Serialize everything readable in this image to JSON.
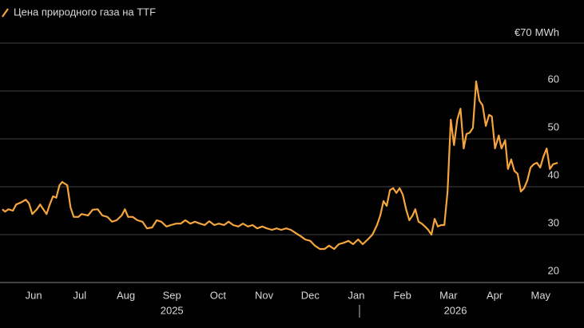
{
  "chart_data": {
    "type": "line",
    "legend_position": "top-left",
    "ylabel": "MWh",
    "x": [
      -0.18,
      -0.12,
      -0.05,
      0.05,
      0.12,
      0.22,
      0.33,
      0.4,
      0.47,
      0.57,
      0.64,
      0.71,
      0.78,
      0.85,
      0.92,
      0.99,
      1.06,
      1.12,
      1.23,
      1.3,
      1.37,
      1.47,
      1.54,
      1.68,
      1.78,
      1.89,
      1.99,
      2.1,
      2.2,
      2.3,
      2.41,
      2.48,
      2.55,
      2.65,
      2.75,
      2.86,
      2.96,
      3.07,
      3.17,
      3.27,
      3.38,
      3.48,
      3.59,
      3.69,
      3.79,
      3.9,
      4.0,
      4.11,
      4.21,
      4.31,
      4.42,
      4.52,
      4.63,
      4.73,
      4.83,
      4.94,
      5.04,
      5.15,
      5.25,
      5.35,
      5.46,
      5.56,
      5.67,
      5.77,
      5.87,
      5.98,
      6.08,
      6.19,
      6.29,
      6.39,
      6.5,
      6.6,
      6.71,
      6.81,
      6.91,
      7.02,
      7.12,
      7.23,
      7.33,
      7.43,
      7.54,
      7.64,
      7.75,
      7.85,
      7.95,
      8.02,
      8.09,
      8.16,
      8.23,
      8.3,
      8.37,
      8.44,
      8.51,
      8.58,
      8.65,
      8.72,
      8.78,
      8.85,
      8.92,
      8.99,
      9.06,
      9.13,
      9.2,
      9.27,
      9.34,
      9.41,
      9.48,
      9.55,
      9.62,
      9.69,
      9.76,
      9.83,
      9.89,
      9.96,
      10.03,
      10.1,
      10.17,
      10.24,
      10.31,
      10.38,
      10.44,
      10.51,
      10.59,
      10.65,
      10.73,
      10.79,
      10.86,
      10.93,
      11.0,
      11.07,
      11.14,
      11.21,
      11.28,
      11.35,
      11.42,
      11.49,
      11.56,
      11.63,
      11.7,
      11.77,
      11.87
    ],
    "series": [
      {
        "name": "Цена природного газа на TTF",
        "color": "#f5a53c",
        "values": [
          35.3,
          34.8,
          35.3,
          35,
          36.3,
          36.7,
          37.3,
          36.5,
          34.3,
          35.3,
          36.3,
          35.3,
          34.3,
          36.3,
          38,
          37.7,
          40.3,
          41,
          40.3,
          35.7,
          33.7,
          33.7,
          34.3,
          34,
          35.2,
          35.3,
          34,
          33.7,
          32.7,
          33,
          34,
          35.3,
          33.7,
          33.7,
          33,
          32.7,
          31.3,
          31.5,
          33,
          32.7,
          31.7,
          32,
          32.3,
          32.3,
          33,
          32.3,
          32.7,
          32.3,
          32,
          32.8,
          32,
          32.3,
          32,
          32.7,
          32,
          31.7,
          32.3,
          31.7,
          32,
          31.3,
          31.7,
          31.3,
          31,
          31.3,
          31,
          31.3,
          31,
          30.3,
          29.7,
          29,
          28.7,
          27.7,
          27,
          27,
          27.7,
          27,
          28,
          28.3,
          28.7,
          28,
          29,
          28,
          29,
          30,
          32,
          34,
          37,
          36,
          39.3,
          39.7,
          38.7,
          39.7,
          38.3,
          35.3,
          33,
          34,
          35.3,
          32.7,
          32.3,
          31.7,
          31,
          30,
          33.3,
          31.7,
          32,
          32,
          39,
          54,
          48.7,
          54,
          56.3,
          48,
          51,
          51.3,
          52.3,
          62,
          58,
          57,
          52.7,
          55,
          54.7,
          48,
          50.7,
          48,
          49.7,
          43.7,
          45.7,
          43.3,
          42.7,
          39,
          39.7,
          41.3,
          44,
          44.7,
          45,
          44,
          46.3,
          48,
          43.7,
          44.7,
          45
        ]
      }
    ],
    "xlim": [
      -0.23,
      12.44
    ],
    "xticks": [
      {
        "value": 0.5,
        "label": "Jun"
      },
      {
        "value": 1.5,
        "label": "Jul"
      },
      {
        "value": 2.5,
        "label": "Aug"
      },
      {
        "value": 3.5,
        "label": "Sep"
      },
      {
        "value": 4.5,
        "label": "Oct"
      },
      {
        "value": 5.5,
        "label": "Nov"
      },
      {
        "value": 6.5,
        "label": "Dec"
      },
      {
        "value": 7.5,
        "label": "Jan"
      },
      {
        "value": 8.5,
        "label": "Feb"
      },
      {
        "value": 9.5,
        "label": "Mar"
      },
      {
        "value": 10.5,
        "label": "Apr"
      },
      {
        "value": 11.5,
        "label": "May"
      }
    ],
    "year_labels": [
      {
        "value": 3.5,
        "label": "2025"
      },
      {
        "value": 9.65,
        "label": "2026"
      }
    ],
    "ylim": [
      20,
      70
    ],
    "yticks": [
      20,
      30,
      40,
      50,
      60,
      {
        "value": 70,
        "label": "€70"
      }
    ],
    "grid": true
  }
}
